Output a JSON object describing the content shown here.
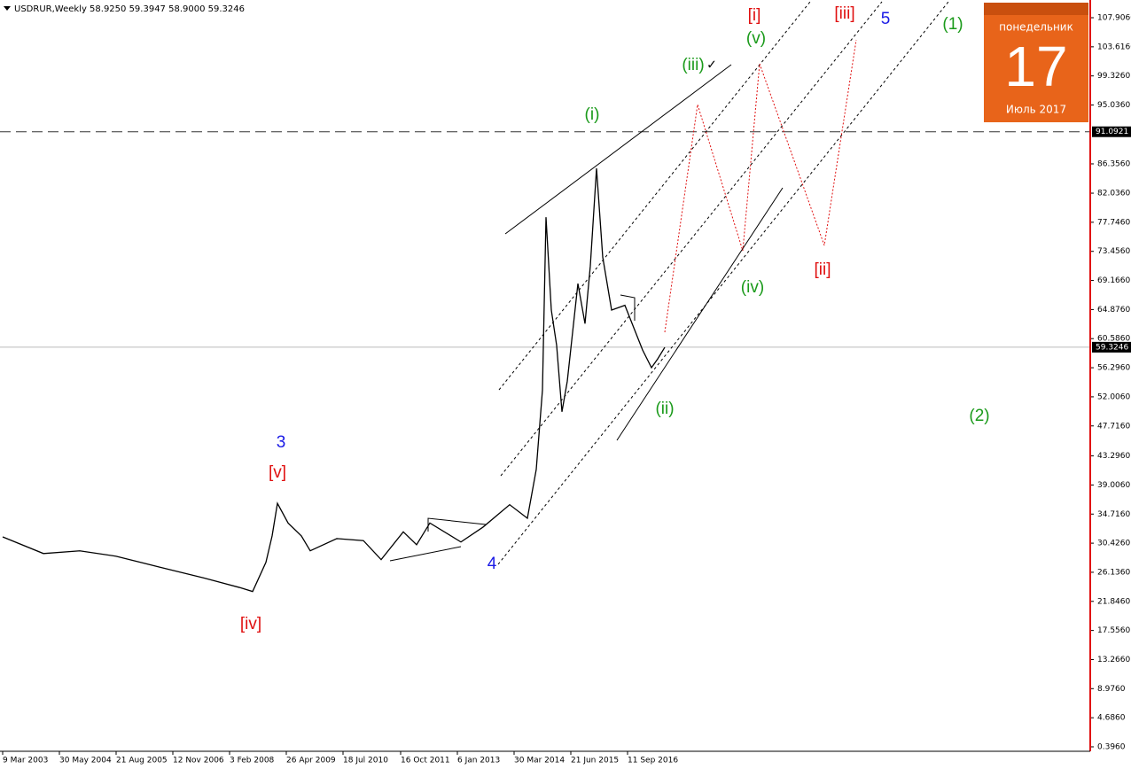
{
  "chart_data": {
    "type": "line",
    "title": "USDRUR,Weekly 58.9250 59.3947 58.9000 59.3246",
    "x": [
      "2003-03-09",
      "2004-01-25",
      "2004-11-07",
      "2005-08-21",
      "2006-07-30",
      "2007-07-15",
      "2008-04-20",
      "2008-08-03",
      "2008-11-16",
      "2009-01-04",
      "2009-02-15",
      "2009-05-10",
      "2009-08-23",
      "2009-11-01",
      "2010-05-30",
      "2010-12-26",
      "2011-05-15",
      "2011-11-06",
      "2012-02-19",
      "2012-06-03",
      "2013-02-03",
      "2013-07-28",
      "2014-02-23",
      "2014-07-13",
      "2014-09-21",
      "2014-11-09",
      "2014-12-07",
      "2015-01-18",
      "2015-03-01",
      "2015-04-12",
      "2015-05-24",
      "2015-08-16",
      "2015-10-11",
      "2015-11-22",
      "2016-01-10",
      "2016-02-28",
      "2016-05-08",
      "2016-08-21",
      "2016-10-30",
      "2017-01-08",
      "2017-03-19",
      "2017-05-07",
      "2017-07-02"
    ],
    "series": [
      {
        "name": "USDRUR",
        "color": "#000000",
        "values": [
          31.35,
          28.9,
          29.3,
          28.5,
          26.9,
          25.3,
          23.9,
          23.3,
          27.6,
          31.5,
          36.3,
          33.4,
          31.5,
          29.3,
          31.1,
          30.8,
          28.0,
          32.1,
          30.2,
          33.4,
          30.6,
          32.8,
          36.1,
          34.1,
          41.3,
          53.0,
          78.5,
          64.8,
          59.6,
          49.8,
          54.3,
          68.7,
          62.8,
          71.3,
          85.7,
          72.6,
          64.8,
          65.5,
          62.2,
          58.9,
          56.3,
          57.6,
          59.3
        ]
      }
    ],
    "xlim": [
      "2003-02-16",
      "2026-09-13"
    ],
    "xticks": [
      {
        "value": "2003-03-09",
        "label": "9 Mar 2003"
      },
      {
        "value": "2004-05-30",
        "label": "30 May 2004"
      },
      {
        "value": "2005-08-21",
        "label": "21 Aug 2005"
      },
      {
        "value": "2006-11-12",
        "label": "12 Nov 2006"
      },
      {
        "value": "2008-02-03",
        "label": "3 Feb 2008"
      },
      {
        "value": "2009-04-26",
        "label": "26 Apr 2009"
      },
      {
        "value": "2010-07-18",
        "label": "18 Jul 2010"
      },
      {
        "value": "2011-10-16",
        "label": "16 Oct 2011"
      },
      {
        "value": "2013-01-06",
        "label": "6 Jan 2013"
      },
      {
        "value": "2014-03-30",
        "label": "30 Mar 2014"
      },
      {
        "value": "2015-06-21",
        "label": "21 Jun 2015"
      },
      {
        "value": "2016-09-11",
        "label": "11 Sep 2016"
      }
    ],
    "ylim": [
      -0.26,
      110.52
    ],
    "yticks": [
      {
        "value": 107.906,
        "label": "107.9060"
      },
      {
        "value": 103.616,
        "label": "103.6160"
      },
      {
        "value": 99.326,
        "label": "99.3260"
      },
      {
        "value": 95.036,
        "label": "95.0360"
      },
      {
        "value": 86.356,
        "label": "86.3560"
      },
      {
        "value": 82.036,
        "label": "82.0360"
      },
      {
        "value": 77.746,
        "label": "77.7460"
      },
      {
        "value": 73.456,
        "label": "73.4560"
      },
      {
        "value": 69.166,
        "label": "69.1660"
      },
      {
        "value": 64.876,
        "label": "64.8760"
      },
      {
        "value": 60.586,
        "label": "60.5860"
      },
      {
        "value": 56.296,
        "label": "56.2960"
      },
      {
        "value": 52.006,
        "label": "52.0060"
      },
      {
        "value": 47.716,
        "label": "47.7160"
      },
      {
        "value": 43.296,
        "label": "43.2960"
      },
      {
        "value": 39.006,
        "label": "39.0060"
      },
      {
        "value": 34.716,
        "label": "34.7160"
      },
      {
        "value": 30.426,
        "label": "30.4260"
      },
      {
        "value": 26.136,
        "label": "26.1360"
      },
      {
        "value": 21.846,
        "label": "21.8460"
      },
      {
        "value": 17.556,
        "label": "17.5560"
      },
      {
        "value": 13.266,
        "label": "13.2660"
      },
      {
        "value": 8.976,
        "label": "8.9760"
      },
      {
        "value": 4.686,
        "label": "4.6860"
      },
      {
        "value": 0.396,
        "label": "0.3960"
      }
    ],
    "resistance_level": 91.0921,
    "current_price": 59.3246,
    "annotations": [
      "3",
      "[v]",
      "[iv]",
      "4",
      "(i)",
      "(ii)",
      "(iii)",
      "✓",
      "(iv)",
      "(v)",
      "[i]",
      "[ii]",
      "[iii]",
      "5",
      "(1)",
      "(2)"
    ],
    "calendar": {
      "weekday": "понедельник",
      "day": "17",
      "month": "Июль 2017"
    }
  }
}
